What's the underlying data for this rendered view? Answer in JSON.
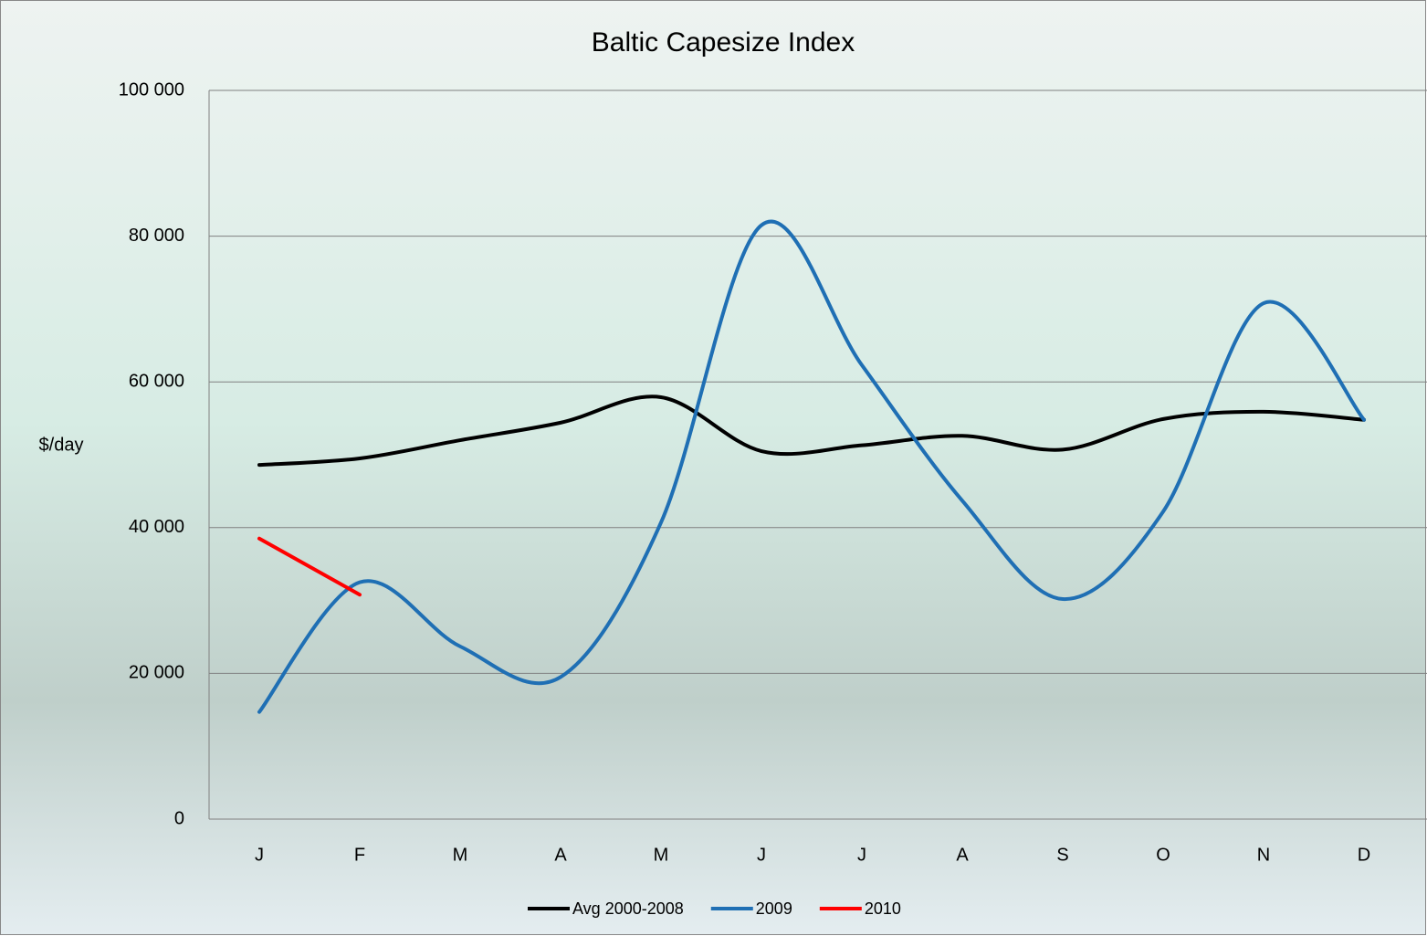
{
  "chart_data": {
    "type": "line",
    "title": "Baltic Capesize Index",
    "y_label": "$/day",
    "categories": [
      "J",
      "F",
      "M",
      "A",
      "M",
      "J",
      "J",
      "A",
      "S",
      "O",
      "N",
      "D"
    ],
    "series": [
      {
        "name": "Avg 2000-2008",
        "color": "#000000",
        "values": [
          48600,
          49500,
          52000,
          54400,
          57900,
          50500,
          51300,
          52600,
          50700,
          54900,
          55900,
          54800
        ]
      },
      {
        "name": "2009",
        "color": "#1f6fb4",
        "values": [
          14700,
          32500,
          23700,
          19500,
          40700,
          81500,
          62300,
          43700,
          30200,
          42200,
          70800,
          54800
        ]
      },
      {
        "name": "2010",
        "color": "#ff0000",
        "values": [
          38500,
          30800,
          null,
          null,
          null,
          null,
          null,
          null,
          null,
          null,
          null,
          null
        ]
      }
    ],
    "ylim": [
      0,
      100000
    ],
    "yticks": [
      0,
      {
        "value": 20000,
        "label": "20 000"
      },
      {
        "value": 40000,
        "label": "40 000"
      },
      {
        "value": 60000,
        "label": "60 000"
      },
      {
        "value": 80000,
        "label": "80 000"
      },
      {
        "value": 100000,
        "label": "100 000"
      }
    ],
    "grid": true,
    "legend": "bottom"
  }
}
